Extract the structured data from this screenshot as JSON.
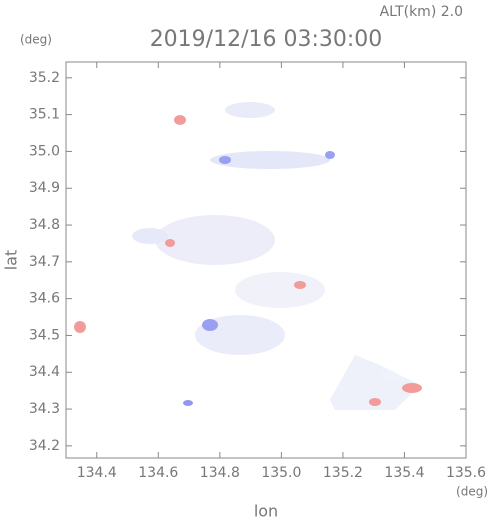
{
  "chart_data": {
    "type": "field",
    "title": "2019/12/16 03:30:00",
    "subtitle": "ALT(km) 2.0",
    "x_label": "lon",
    "x_unit": "(deg)",
    "y_label": "lat",
    "y_unit": "(deg)",
    "xlim": [
      134.3,
      135.6
    ],
    "xticks": [
      134.4,
      134.6,
      134.8,
      135.0,
      135.2,
      135.4,
      135.6
    ],
    "ylim": [
      34.167,
      35.243
    ],
    "yticks": [
      34.2,
      34.3,
      34.4,
      34.5,
      34.6,
      34.7,
      34.8,
      34.9,
      35.0,
      35.1,
      35.2
    ]
  }
}
